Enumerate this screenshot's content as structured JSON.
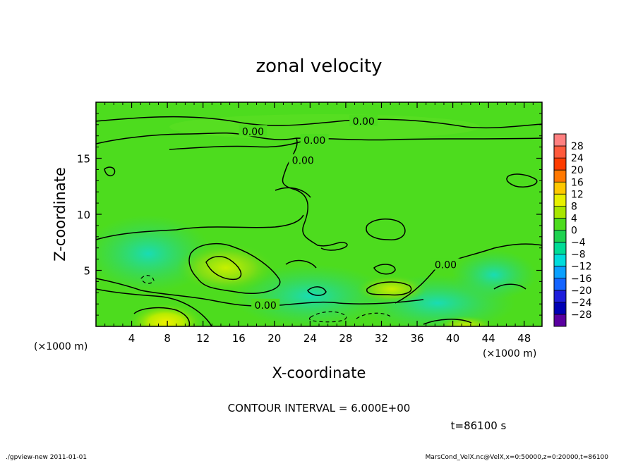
{
  "chart_data": {
    "type": "heatmap",
    "title": "zonal velocity",
    "xlabel": "X-coordinate",
    "ylabel": "Z-coordinate",
    "x_unit_label": "(×1000 m)",
    "y_unit_label": "(×1000 m)",
    "xlim": [
      0,
      50
    ],
    "ylim": [
      0,
      20
    ],
    "x_ticks": [
      4,
      8,
      12,
      16,
      20,
      24,
      28,
      32,
      36,
      40,
      44,
      48
    ],
    "y_ticks": [
      5,
      10,
      15
    ],
    "grid": false,
    "colorbar": {
      "levels": [
        28,
        24,
        20,
        16,
        12,
        8,
        4,
        0,
        -4,
        -8,
        -12,
        -16,
        -20,
        -24,
        -28
      ],
      "labels": [
        "28",
        "24",
        "20",
        "16",
        "12",
        "8",
        "4",
        "0",
        "−4",
        "−8",
        "−12",
        "−16",
        "−20",
        "−24",
        "−28"
      ],
      "colors": [
        "#ff8080",
        "#ff5a3c",
        "#ff3c00",
        "#ff7800",
        "#ffc800",
        "#e8f000",
        "#a8e600",
        "#4ddc1e",
        "#1ed250",
        "#00dc96",
        "#00dcdc",
        "#0aa0ff",
        "#1464ff",
        "#1e1edc",
        "#0000b4",
        "#5a00a0"
      ]
    },
    "contour_labels": [
      {
        "x": 17.6,
        "z": 17.4,
        "text": "0.00"
      },
      {
        "x": 30.0,
        "z": 18.3,
        "text": "0.00"
      },
      {
        "x": 24.5,
        "z": 16.6,
        "text": "0.00"
      },
      {
        "x": 23.2,
        "z": 14.8,
        "text": "0.00"
      },
      {
        "x": 39.2,
        "z": 5.5,
        "text": "0.00"
      },
      {
        "x": 19.0,
        "z": 1.9,
        "text": "0.00"
      }
    ],
    "contour_interval_text": "CONTOUR INTERVAL = 6.000E+00",
    "time_text": "t=86100 s"
  },
  "footer": {
    "left": "./gpview-new  2011-01-01",
    "right": "MarsCond_VelX.nc@VelX,x=0:50000,z=0:20000,t=86100"
  }
}
